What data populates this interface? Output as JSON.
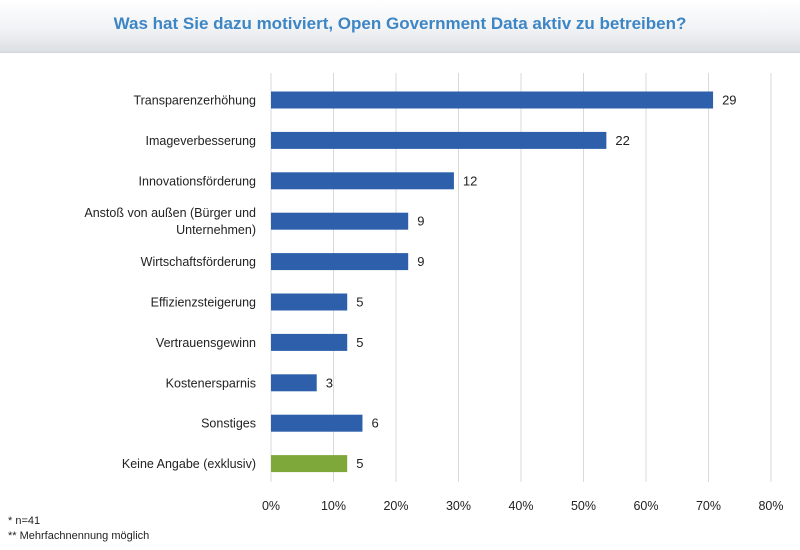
{
  "chart_data": {
    "type": "bar",
    "orientation": "horizontal",
    "title": "Was hat Sie dazu motiviert, Open Government Data aktiv zu betreiben?",
    "categories": [
      "Transparenzerhöhung",
      "Imageverbesserung",
      "Innovationsförderung",
      "Anstoß von außen (Bürger und Unternehmen)",
      "Wirtschaftsförderung",
      "Effizienzsteigerung",
      "Vertrauensgewinn",
      "Kostenersparnis",
      "Sonstiges",
      "Keine Angabe (exklusiv)"
    ],
    "category_lines": [
      [
        "Transparenzerhöhung"
      ],
      [
        "Imageverbesserung"
      ],
      [
        "Innovationsförderung"
      ],
      [
        "Anstoß von außen (Bürger und",
        "Unternehmen)"
      ],
      [
        "Wirtschaftsförderung"
      ],
      [
        "Effizienzsteigerung"
      ],
      [
        "Vertrauensgewinn"
      ],
      [
        "Kostenersparnis"
      ],
      [
        "Sonstiges"
      ],
      [
        "Keine Angabe (exklusiv)"
      ]
    ],
    "values": [
      29,
      22,
      12,
      9,
      9,
      5,
      5,
      3,
      6,
      5
    ],
    "total_n": 41,
    "xlim": [
      0,
      0.8
    ],
    "x_ticks": [
      "0%",
      "10%",
      "20%",
      "30%",
      "40%",
      "50%",
      "60%",
      "70%",
      "80%"
    ],
    "grid": true,
    "colors": {
      "bar": "#2e5fab",
      "highlight": "#7fa83a",
      "title": "#3d86c6",
      "grid": "#d9d9d9"
    },
    "highlight_index": 9
  },
  "footnotes": {
    "n": "* n=41",
    "multiple": "** Mehrfachnennung möglich"
  }
}
